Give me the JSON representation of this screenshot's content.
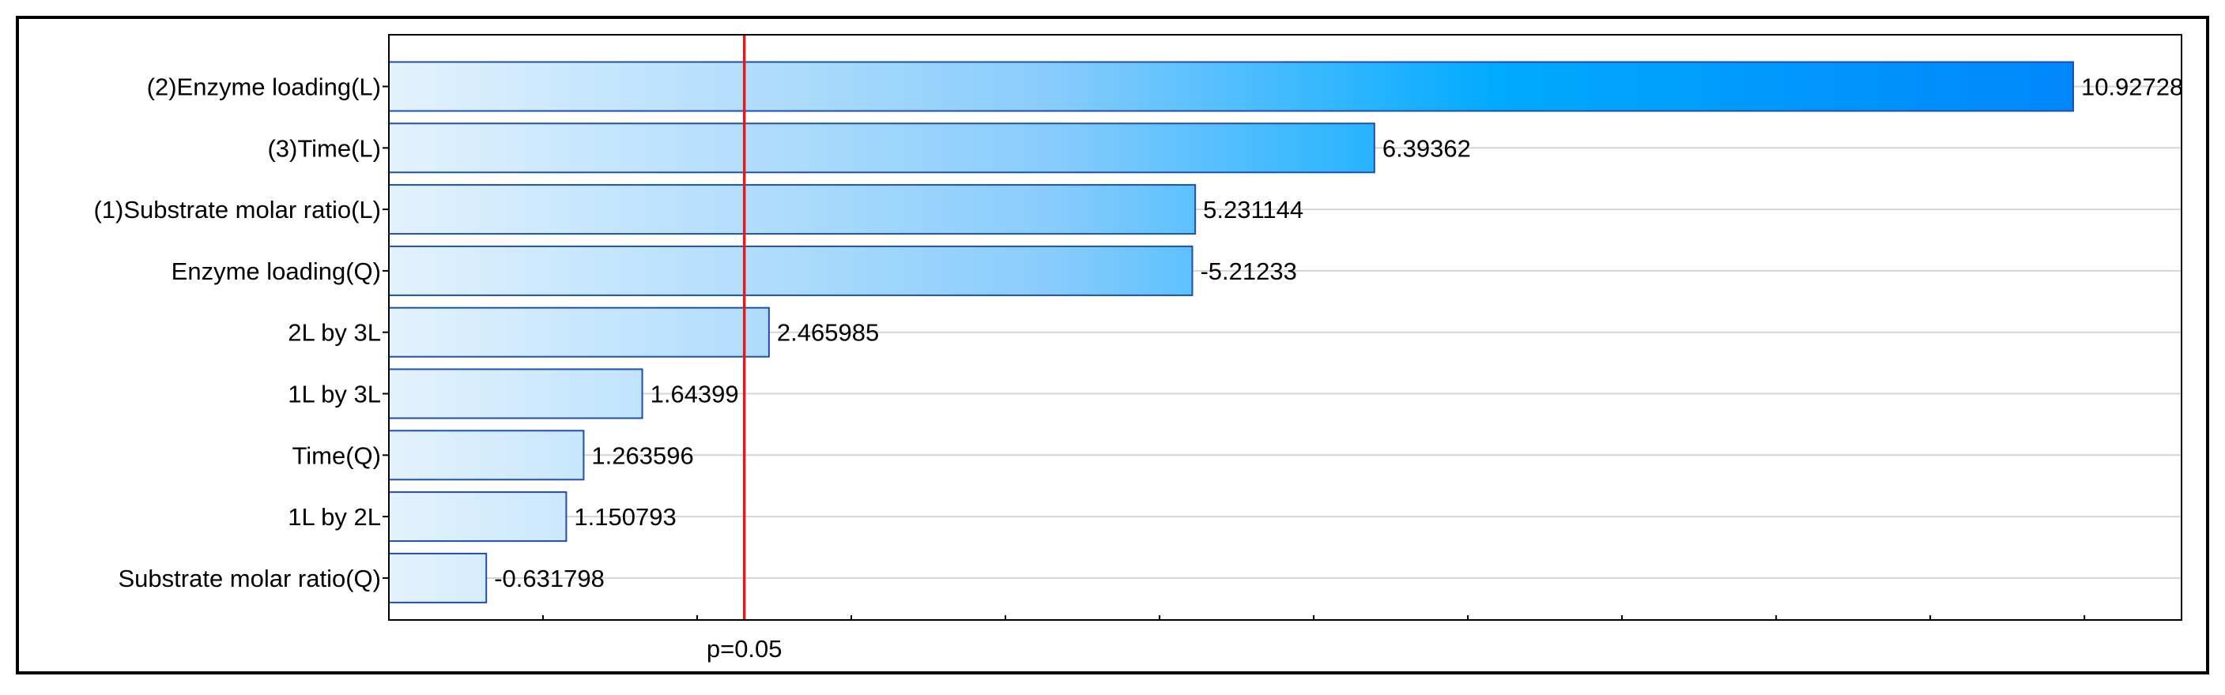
{
  "chart_data": {
    "type": "bar",
    "orientation": "horizontal",
    "title": "",
    "xlabel": "",
    "ylabel": "",
    "categories": [
      "(2)Enzyme loading(L)",
      "(3)Time(L)",
      "(1)Substrate molar ratio(L)",
      "Enzyme loading(Q)",
      "2L by 3L",
      "1L by 3L",
      "Time(Q)",
      "1L by 2L",
      "Substrate molar ratio(Q)"
    ],
    "values": [
      10.92728,
      6.39362,
      5.231144,
      -5.21233,
      2.465985,
      1.64399,
      1.263596,
      1.150793,
      -0.631798
    ],
    "value_labels": [
      "10.92728",
      "6.39362",
      "5.231144",
      "-5.21233",
      "2.465985",
      "1.64399",
      "1.263596",
      "1.150793",
      "-0.631798"
    ],
    "xlim": [
      0,
      11.63
    ],
    "grid": "horizontal",
    "reference_line": {
      "value": 2.306,
      "label": "p=0.05",
      "color": "#e21b1b"
    },
    "colors": {
      "bar_light": "#e3f2fd",
      "bar_mid": "#88ccfc",
      "bar_cyan": "#00aaff",
      "bar_dark": "#0080f8",
      "bar_outline": "#1d4fb0",
      "grid": "#d4d4d4",
      "frame": "#000000"
    }
  }
}
